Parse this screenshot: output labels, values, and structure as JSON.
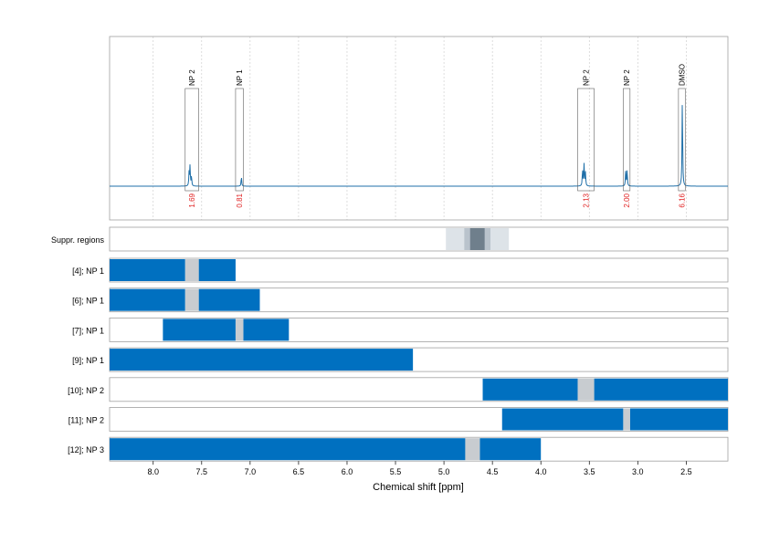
{
  "colors": {
    "spectrum": "#1f6fa8",
    "bar": "#0070c0",
    "gap": "#c8ccd0",
    "integral_text": "#e02020",
    "suppr_outer": "#dde3e8",
    "suppr_mid": "#b9c3cc",
    "suppr_core": "#6f7f8c",
    "grid": "#c8c8c8",
    "frame": "#a0a0a0"
  },
  "chart_data": {
    "type": "line",
    "x_axis": {
      "label": "Chemical shift [ppm]",
      "range": [
        8.45,
        2.07
      ],
      "reversed": true,
      "ticks": [
        8.0,
        7.5,
        7.0,
        6.5,
        6.0,
        5.5,
        5.0,
        4.5,
        4.0,
        3.5,
        3.0,
        2.5
      ],
      "tick_labels": [
        "8.0",
        "7.5",
        "7.0",
        "6.5",
        "6.0",
        "5.5",
        "5.0",
        "4.5",
        "4.0",
        "3.5",
        "3.0",
        "2.5"
      ]
    },
    "grid": true,
    "spectrum": {
      "peaks": [
        {
          "ppm": 7.63,
          "height": 0.12
        },
        {
          "ppm": 7.62,
          "height": 0.18
        },
        {
          "ppm": 7.605,
          "height": 0.09
        },
        {
          "ppm": 7.09,
          "height": 0.09
        },
        {
          "ppm": 3.57,
          "height": 0.15
        },
        {
          "ppm": 3.555,
          "height": 0.2
        },
        {
          "ppm": 3.54,
          "height": 0.12
        },
        {
          "ppm": 3.125,
          "height": 0.13
        },
        {
          "ppm": 3.11,
          "height": 0.15
        },
        {
          "ppm": 2.54,
          "height": 0.8
        }
      ]
    },
    "annotations": [
      {
        "label": "NP 2",
        "from": 7.67,
        "to": 7.53,
        "integral": "1.69"
      },
      {
        "label": "NP 1",
        "from": 7.15,
        "to": 7.07,
        "integral": "0.81"
      },
      {
        "label": "NP 2",
        "from": 3.62,
        "to": 3.45,
        "integral": "2.13"
      },
      {
        "label": "NP 2",
        "from": 3.15,
        "to": 3.08,
        "integral": "2.00"
      },
      {
        "label": "DMSO",
        "from": 2.58,
        "to": 2.51,
        "integral": "6.16"
      }
    ],
    "suppression": {
      "label": "Suppr. regions",
      "bands": [
        {
          "from": 4.98,
          "to": 4.33,
          "level": "outer"
        },
        {
          "from": 4.79,
          "to": 4.52,
          "level": "mid"
        },
        {
          "from": 4.73,
          "to": 4.58,
          "level": "core"
        }
      ]
    },
    "rows": [
      {
        "label": "[4]; NP 1",
        "segments": [
          [
            8.45,
            7.67
          ],
          [
            7.53,
            7.15
          ]
        ]
      },
      {
        "label": "[6]; NP 1",
        "segments": [
          [
            8.45,
            7.67
          ],
          [
            7.53,
            6.9
          ]
        ]
      },
      {
        "label": "[7]; NP 1",
        "segments": [
          [
            7.9,
            7.15
          ],
          [
            7.07,
            6.6
          ]
        ]
      },
      {
        "label": "[9]; NP 1",
        "segments": [
          [
            8.45,
            5.32
          ]
        ]
      },
      {
        "label": "[10]; NP 2",
        "segments": [
          [
            4.6,
            3.62
          ],
          [
            3.45,
            2.07
          ]
        ]
      },
      {
        "label": "[11]; NP 2",
        "segments": [
          [
            4.4,
            3.15
          ],
          [
            3.08,
            2.07
          ]
        ]
      },
      {
        "label": "[12]; NP 3",
        "segments": [
          [
            8.45,
            4.78
          ],
          [
            4.63,
            4.0
          ]
        ]
      }
    ],
    "gaps": [
      {
        "row": 0,
        "from": 7.67,
        "to": 7.53
      },
      {
        "row": 1,
        "from": 7.67,
        "to": 7.53
      },
      {
        "row": 2,
        "from": 7.15,
        "to": 7.07
      },
      {
        "row": 4,
        "from": 3.62,
        "to": 3.45
      },
      {
        "row": 5,
        "from": 3.15,
        "to": 3.08
      },
      {
        "row": 6,
        "from": 4.78,
        "to": 4.63
      }
    ]
  }
}
